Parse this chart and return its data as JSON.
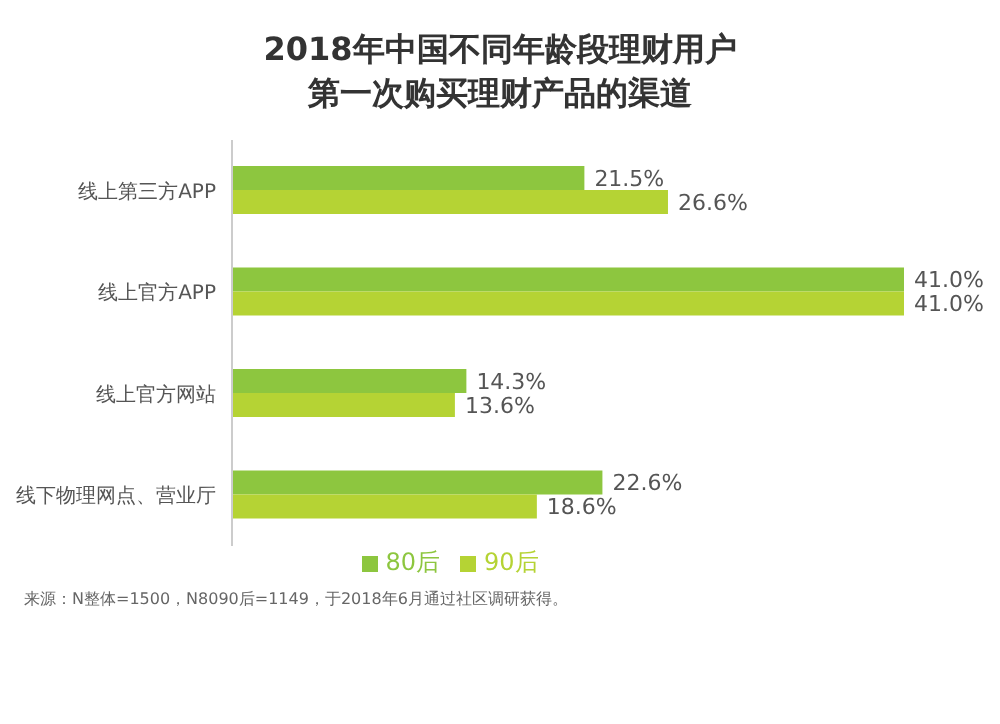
{
  "chart_data": {
    "type": "bar",
    "orientation": "horizontal",
    "title": "2018年中国不同年龄段理财用户第一次购买理财产品的渠道",
    "categories": [
      "线上第三方APP",
      "线上官方APP",
      "线上官方网站",
      "线下物理网点、营业厅"
    ],
    "series": [
      {
        "name": "80后",
        "color": "#8dc63f",
        "values": [
          21.5,
          41.0,
          14.3,
          22.6
        ],
        "value_labels": [
          "21.5%",
          "41.0%",
          "14.3%",
          "22.6%"
        ]
      },
      {
        "name": "90后",
        "color": "#b5d334",
        "values": [
          26.6,
          41.0,
          13.6,
          18.6
        ],
        "value_labels": [
          "26.6%",
          "41.0%",
          "13.6%",
          "18.6%"
        ]
      }
    ],
    "legend": "bottom",
    "annotations": [
      "来源：N整体=1500，N8090后=1149，于2018年6月通过社区调研获得。"
    ]
  }
}
